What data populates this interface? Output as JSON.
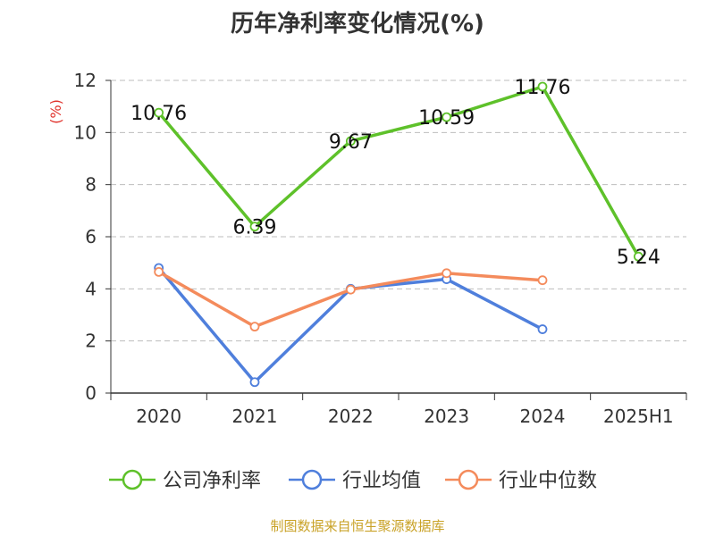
{
  "title": "历年净利率变化情况(%)",
  "source_note": "制图数据来自恒生聚源数据库",
  "chart_data": {
    "type": "line",
    "title": "历年净利率变化情况(%)",
    "ylabel": "(%)",
    "categories": [
      "2020",
      "2021",
      "2022",
      "2023",
      "2024",
      "2025H1"
    ],
    "ylim": [
      0,
      12
    ],
    "yticks": [
      0,
      2,
      4,
      6,
      8,
      10,
      12
    ],
    "grid": "horizontal dashed",
    "legend_position": "bottom",
    "series": [
      {
        "name": "公司净利率",
        "color": "#5ec12a",
        "values": [
          10.76,
          6.39,
          9.67,
          10.59,
          11.76,
          5.24
        ],
        "data_labels": [
          "10.76",
          "6.39",
          "9.67",
          "10.59",
          "11.76",
          "5.24"
        ]
      },
      {
        "name": "行业均值",
        "color": "#4f7fdc",
        "values": [
          4.8,
          0.42,
          4.0,
          4.37,
          2.45,
          null
        ]
      },
      {
        "name": "行业中位数",
        "color": "#f48b5c",
        "values": [
          4.65,
          2.55,
          3.97,
          4.6,
          4.33,
          null
        ]
      }
    ]
  }
}
